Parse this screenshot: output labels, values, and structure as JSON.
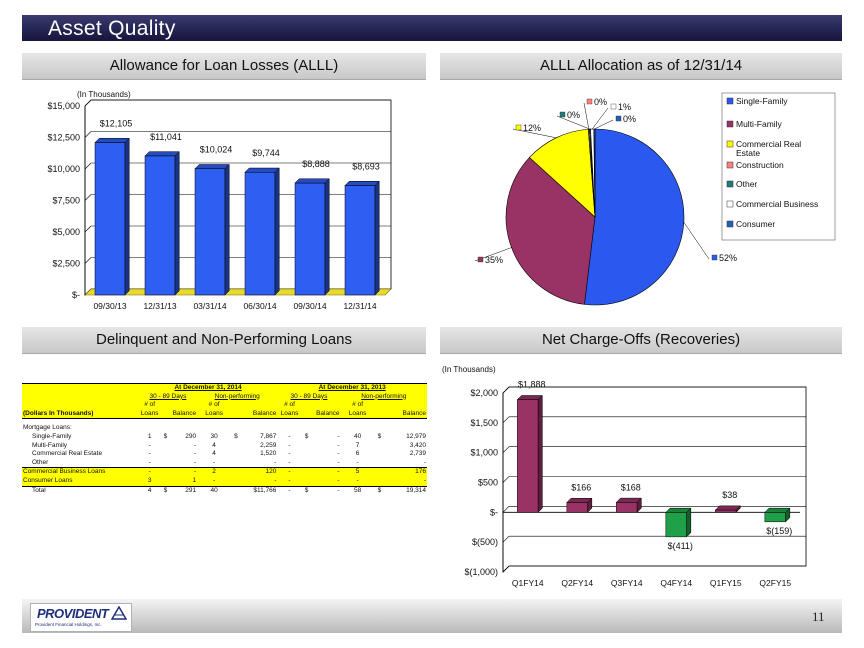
{
  "slide": {
    "title": "Asset Quality",
    "page_number": "11",
    "logo_text": "PROVIDENT",
    "logo_subtext": "Provident Financial Holdings, Inc."
  },
  "sections": {
    "allowance": "Allowance for Loan Losses (ALLL)",
    "allocation": "ALLL Allocation as of 12/31/14",
    "delinquent": "Delinquent and Non-Performing Loans",
    "nco": "Net Charge-Offs (Recoveries)"
  },
  "chart_data": [
    {
      "type": "bar",
      "name": "allowance",
      "note": "(In Thousands)",
      "categories": [
        "09/30/13",
        "12/31/13",
        "03/31/14",
        "06/30/14",
        "09/30/14",
        "12/31/14"
      ],
      "values": [
        12105,
        11041,
        10024,
        9744,
        8888,
        8693
      ],
      "data_labels": [
        "$12,105",
        "$11,041",
        "$10,024",
        "$9,744",
        "$8,888",
        "$8,693"
      ],
      "y_ticks": [
        0,
        2500,
        5000,
        7500,
        10000,
        12500,
        15000
      ],
      "y_tick_labels": [
        "$-",
        "$2,500",
        "$5,000",
        "$7,500",
        "$10,000",
        "$12,500",
        "$15,000"
      ],
      "ylim": [
        0,
        15000
      ],
      "grid": true,
      "color": "#2f5ff2",
      "floor_color": "#e8d92a"
    },
    {
      "type": "pie",
      "name": "allocation",
      "slices": [
        {
          "label": "Single-Family",
          "value": 52,
          "display": "52%",
          "color": "#2b59f0"
        },
        {
          "label": "Multi-Family",
          "value": 35,
          "display": "35%",
          "color": "#993366"
        },
        {
          "label": "Commercial Real Estate",
          "value": 12,
          "display": "12%",
          "color": "#ffff00"
        },
        {
          "label": "Construction",
          "value": 0.2,
          "display": "0%",
          "color": "#ff8080"
        },
        {
          "label": "Other",
          "value": 0.2,
          "display": "0%",
          "color": "#1f7a7a"
        },
        {
          "label": "Commercial Business",
          "value": 0.6,
          "display": "1%",
          "color": "#ffffff"
        },
        {
          "label": "Consumer",
          "value": 0.2,
          "display": "0%",
          "color": "#1f5fb5"
        }
      ],
      "legend_position": "right",
      "legend_labels": [
        "Single-Family",
        "Multi-Family",
        "Commercial Real",
        "Estate",
        "Construction",
        "Other",
        "Commercial Business",
        "Consumer"
      ]
    },
    {
      "type": "bar",
      "name": "net-charge-offs",
      "note": "(In Thousands)",
      "categories": [
        "Q1FY14",
        "Q2FY14",
        "Q3FY14",
        "Q4FY14",
        "Q1FY15",
        "Q2FY15"
      ],
      "values": [
        1888,
        166,
        168,
        -411,
        38,
        -159
      ],
      "data_labels": [
        "$1,888",
        "$166",
        "$168",
        "$(411)",
        "$38",
        "$(159)"
      ],
      "y_ticks": [
        -1000,
        -500,
        0,
        500,
        1000,
        1500,
        2000
      ],
      "y_tick_labels": [
        "$(1,000)",
        "$(500)",
        "$-",
        "$500",
        "$1,000",
        "$1,500",
        "$2,000"
      ],
      "ylim": [
        -1000,
        2000
      ],
      "grid": true,
      "positive_color": "#993366",
      "negative_color": "#21a04a"
    },
    {
      "type": "table",
      "name": "delinquent-table",
      "group_headers": [
        "At December 31, 2014",
        "At December 31, 2013"
      ],
      "sub_headers": [
        "30 - 89 Days",
        "Non-performing",
        "30 - 89 Days",
        "Non-performing"
      ],
      "col_top": [
        "# of",
        "# of",
        "# of",
        "# of"
      ],
      "columns": [
        "(Dollars In Thousands)",
        "Loans",
        "Balance",
        "Loans",
        "Balance",
        "Loans",
        "Balance",
        "Loans",
        "Balance"
      ],
      "section_label": "Mortgage Loans:",
      "rows": [
        {
          "label": "Single-Family",
          "style": "indent",
          "cells": [
            "1",
            "$",
            "290",
            "30",
            "$",
            "7,867",
            "-",
            "$",
            "-",
            "40",
            "$",
            "12,979"
          ]
        },
        {
          "label": "Multi-Family",
          "style": "indent",
          "cells": [
            "-",
            "",
            "-",
            "4",
            "",
            "2,259",
            "-",
            "",
            "-",
            "7",
            "",
            "3,420"
          ]
        },
        {
          "label": "Commercial Real Estate",
          "style": "indent",
          "cells": [
            "-",
            "",
            "-",
            "4",
            "",
            "1,520",
            "-",
            "",
            "-",
            "6",
            "",
            "2,739"
          ]
        },
        {
          "label": "Other",
          "style": "indent",
          "cells": [
            "-",
            "",
            "-",
            "-",
            "",
            "-",
            "-",
            "",
            "-",
            "-",
            "",
            "-"
          ]
        },
        {
          "label": "Commercial Business Loans",
          "style": "plain",
          "cells": [
            "-",
            "",
            "-",
            "2",
            "",
            "120",
            "-",
            "",
            "-",
            "5",
            "",
            "176"
          ]
        },
        {
          "label": "Consumer Loans",
          "style": "plain",
          "cells": [
            "3",
            "",
            "1",
            "-",
            "",
            "-",
            "-",
            "",
            "-",
            "-",
            "",
            "-"
          ]
        },
        {
          "label": "Total",
          "style": "indent",
          "cells": [
            "4",
            "$",
            "291",
            "40",
            "",
            "$11,766",
            "-",
            "$",
            "-",
            "58",
            "$",
            "19,314"
          ]
        }
      ]
    }
  ]
}
